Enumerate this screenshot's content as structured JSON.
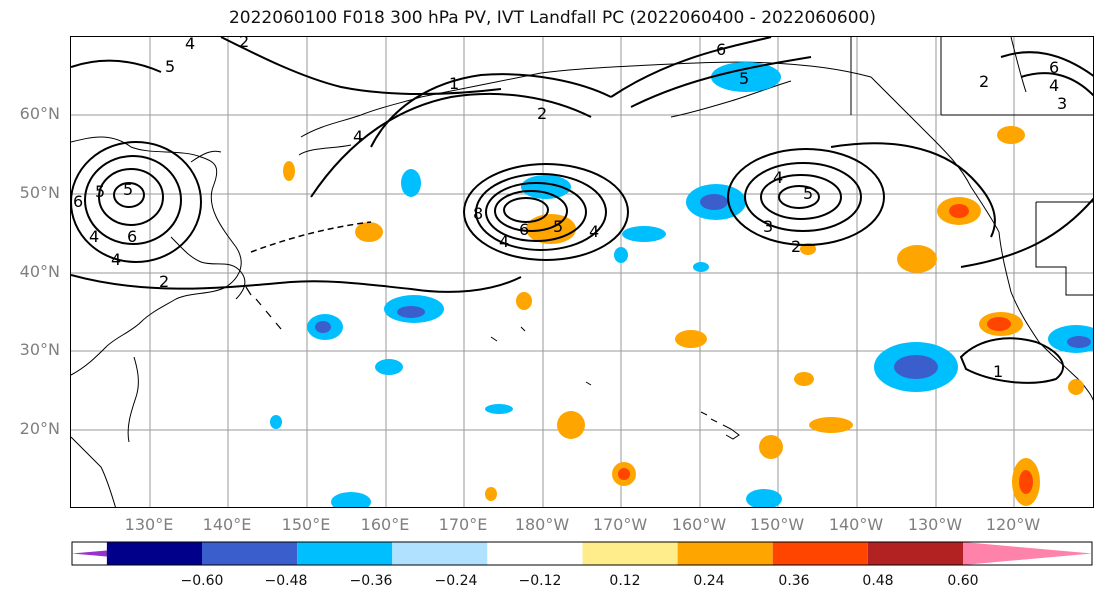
{
  "title": "2022060100 F018 300 hPa PV, IVT Landfall PC (2022060400 - 2022060600)",
  "lat_labels": [
    "60°N",
    "50°N",
    "40°N",
    "30°N",
    "20°N"
  ],
  "lon_labels": [
    "130°E",
    "140°E",
    "150°E",
    "160°E",
    "170°E",
    "180°W",
    "170°W",
    "160°W",
    "150°W",
    "140°W",
    "130°W",
    "120°W"
  ],
  "colorbar": {
    "colors": [
      "#9932cc",
      "#00008b",
      "#3a5fcd",
      "#00bfff",
      "#b0e2ff",
      "#ffffff",
      "#ffec8b",
      "#ffa500",
      "#ff4500",
      "#b22222",
      "#ff82ab"
    ],
    "ticks": [
      "−0.60",
      "−0.48",
      "−0.36",
      "−0.24",
      "−0.12",
      "0.12",
      "0.24",
      "0.36",
      "0.48",
      "0.60"
    ]
  },
  "contour_labels": [
    "5",
    "4",
    "6",
    "5",
    "4",
    "4",
    "2",
    "1",
    "5",
    "6",
    "2",
    "4",
    "5",
    "6",
    "4",
    "3",
    "5",
    "6",
    "4",
    "2",
    "2",
    "8",
    "6",
    "4",
    "5",
    "4",
    "3",
    "2",
    "1"
  ]
}
